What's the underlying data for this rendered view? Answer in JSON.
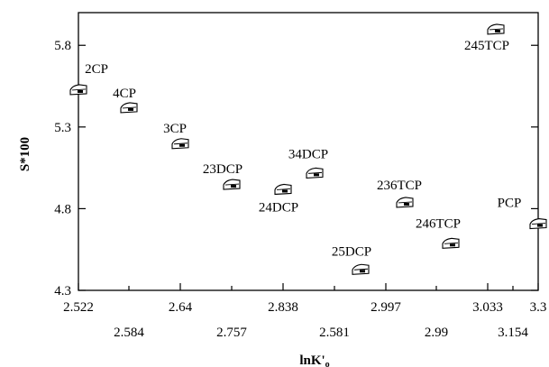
{
  "chart_data": {
    "type": "scatter",
    "xlabel": "lnK'",
    "xlabel_subscript": "o",
    "ylabel": "S*100",
    "ylim": [
      4.3,
      6.0
    ],
    "yticks": [
      "4.3",
      "4.8",
      "5.3",
      "5.8"
    ],
    "xtick_labels_row1": [
      "2.522",
      "2.64",
      "2.838",
      "2.997",
      "3.033",
      "3.3"
    ],
    "xtick_labels_row2": [
      "2.584",
      "2.757",
      "2.581",
      "2.99",
      "3.154"
    ],
    "grid": false,
    "legend": "none",
    "colors": {
      "axis": "#000000",
      "marker": "#000000",
      "background": "#ffffff"
    },
    "points": [
      {
        "label": "2CP",
        "x": 2.522,
        "y": 5.52
      },
      {
        "label": "4CP",
        "x": 2.584,
        "y": 5.41
      },
      {
        "label": "3CP",
        "x": 2.64,
        "y": 5.19
      },
      {
        "label": "23DCP",
        "x": 2.757,
        "y": 4.94
      },
      {
        "label": "24DCP",
        "x": 2.838,
        "y": 4.91
      },
      {
        "label": "34DCP",
        "x": 2.581,
        "y": 5.01
      },
      {
        "label": "25DCP",
        "x": 2.997,
        "y": 4.42
      },
      {
        "label": "236TCP",
        "x": 2.99,
        "y": 4.83
      },
      {
        "label": "246TCP",
        "x": 3.033,
        "y": 4.58
      },
      {
        "label": "245TCP",
        "x": 3.154,
        "y": 5.89
      },
      {
        "label": "PCP",
        "x": 3.3,
        "y": 4.7
      }
    ]
  }
}
